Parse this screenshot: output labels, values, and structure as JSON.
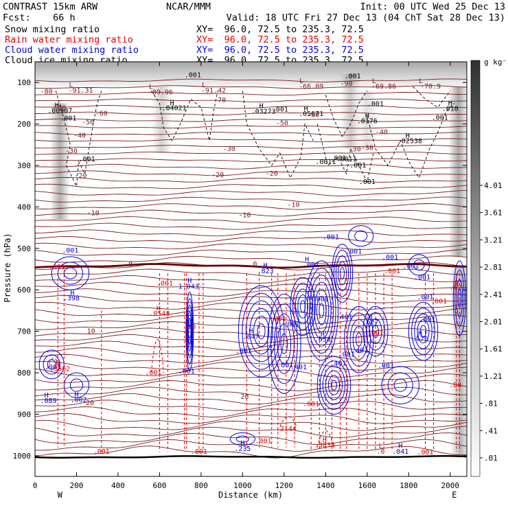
{
  "header": {
    "left_line1": "CONTRAST 15km ARW",
    "center_line1": "NCAR/MMM",
    "right_line1": "Init: 00 UTC Wed 25 Dec 13",
    "left_line2": "Fcst:    66 h",
    "right_line2": "Valid: 18 UTC Fri 27 Dec 13 (04 ChT Sat 28 Dec 13)"
  },
  "fields": [
    {
      "name": "Snow mixing ratio",
      "xy": "XY=  96.0, 72.5 to 235.3, 72.5",
      "color": "#000000"
    },
    {
      "name": "Rain water mixing ratio",
      "xy": "XY=  96.0, 72.5 to 235.3, 72.5",
      "color": "#e00000"
    },
    {
      "name": "Cloud water mixing ratio",
      "xy": "XY=  96.0, 72.5 to 235.3, 72.5",
      "color": "#0000e0"
    },
    {
      "name": "Cloud ice mixing ratio",
      "xy": "XY=  96.0, 72.5 to 235.3, 72.5",
      "color": "#000000"
    }
  ],
  "colors": {
    "temperature": "#7a1a1a",
    "freezing": "#6a0000",
    "rain": "#e00000",
    "cloud_water": "#0000e0",
    "ice": "#000000"
  },
  "chart_data": {
    "type": "cross-section",
    "xlabel": "Distance (km)",
    "ylabel": "Pressure (hPa)",
    "xlim": [
      0,
      2080
    ],
    "ylim": [
      1050,
      50
    ],
    "x_ticks": [
      0,
      200,
      400,
      600,
      800,
      1000,
      1200,
      1400,
      1600,
      1800,
      2000
    ],
    "y_ticks": [
      100,
      200,
      300,
      400,
      500,
      600,
      700,
      800,
      900,
      1000
    ],
    "endpoint_labels": [
      "W",
      "E"
    ],
    "colorbar": {
      "unit": "g kg⁻¹",
      "ticks": [
        ".01",
        ".41",
        ".81",
        "1.21",
        "1.61",
        "2.01",
        "2.41",
        "2.81",
        "3.21",
        "3.61",
        "4.01"
      ],
      "range": [
        0.01,
        4.41
      ]
    },
    "temperature_labels": [
      {
        "text": "-80",
        "x": 55,
        "p": 122
      },
      {
        "text": "-70",
        "x": 120,
        "p": 162
      },
      {
        "text": "-60",
        "x": 320,
        "p": 175
      },
      {
        "text": "-50",
        "x": 255,
        "p": 196
      },
      {
        "text": "-40",
        "x": 215,
        "p": 228
      },
      {
        "text": "-30",
        "x": 175,
        "p": 265
      },
      {
        "text": "-20",
        "x": 220,
        "p": 325
      },
      {
        "text": "-10",
        "x": 280,
        "p": 415
      },
      {
        "text": "0",
        "x": 460,
        "p": 538
      },
      {
        "text": "10",
        "x": 270,
        "p": 700
      },
      {
        "text": "20",
        "x": 265,
        "p": 873
      },
      {
        "text": "-70",
        "x": 890,
        "p": 143
      },
      {
        "text": "-60",
        "x": 1340,
        "p": 178
      },
      {
        "text": "-50",
        "x": 1190,
        "p": 198
      },
      {
        "text": "-40",
        "x": 1670,
        "p": 220
      },
      {
        "text": "-30",
        "x": 1600,
        "p": 258
      },
      {
        "text": "-20",
        "x": 1140,
        "p": 320
      },
      {
        "text": "-10",
        "x": 1245,
        "p": 395
      },
      {
        "text": "0",
        "x": 1060,
        "p": 538
      },
      {
        "text": "20",
        "x": 1010,
        "p": 858
      },
      {
        "text": "-30",
        "x": 935,
        "p": 260
      },
      {
        "text": "-20",
        "x": 880,
        "p": 323
      },
      {
        "text": "-10",
        "x": 1010,
        "p": 420
      },
      {
        "text": "-30",
        "x": 1540,
        "p": 261
      },
      {
        "text": "-90",
        "x": 1500,
        "p": 103
      },
      {
        "text": "10",
        "x": 755,
        "p": 690
      }
    ],
    "temperature_extrema": [
      {
        "type": "L",
        "value": "-91.31",
        "x": 220,
        "p": 88
      },
      {
        "type": "L",
        "value": "-89.96",
        "x": 605,
        "p": 92
      },
      {
        "type": "L",
        "value": "-91.42",
        "x": 860,
        "p": 88
      },
      {
        "type": "L",
        "value": "-66.09",
        "x": 1330,
        "p": 78
      },
      {
        "type": "L",
        "value": "-69.86",
        "x": 1680,
        "p": 78
      },
      {
        "type": "L",
        "value": "-70.9",
        "x": 1905,
        "p": 78
      }
    ],
    "snow_labels": [
      {
        "text": ".001",
        "x": 1530,
        "p": 85
      },
      {
        "text": ".001",
        "x": 760,
        "p": 82
      },
      {
        "text": ".001",
        "x": 160,
        "p": 187
      },
      {
        "text": ".001",
        "x": 250,
        "p": 285
      },
      {
        "text": ".001",
        "x": 1180,
        "p": 165
      },
      {
        "text": ".001",
        "x": 1640,
        "p": 152
      },
      {
        "text": ".001",
        "x": 1555,
        "p": 300
      },
      {
        "text": ".001",
        "x": 1600,
        "p": 340
      },
      {
        "text": ".001",
        "x": 1950,
        "p": 185
      }
    ],
    "ice_maxima": [
      {
        "text": ".00907",
        "x": 120,
        "p": 168
      },
      {
        "text": ".04021",
        "x": 670,
        "p": 162
      },
      {
        "text": ".03273",
        "x": 1100,
        "p": 170
      },
      {
        "text": ".05671",
        "x": 1330,
        "p": 176
      },
      {
        "text": ".0176",
        "x": 1600,
        "p": 193
      },
      {
        "text": ".02538",
        "x": 1805,
        "p": 241
      },
      {
        "text": ".010",
        "x": 2000,
        "p": 163
      },
      {
        "text": ".0011",
        "x": 1400,
        "p": 292
      },
      {
        "text": ".0011",
        "x": 1500,
        "p": 285
      },
      {
        "text": ".001",
        "x": 1460,
        "p": 283
      }
    ],
    "cloud_water_labels": [
      {
        "text": ".001",
        "x": 170,
        "p": 505
      },
      {
        "text": ".398",
        "x": 175,
        "p": 620
      },
      {
        "text": ".001",
        "x": 85,
        "p": 787
      },
      {
        "text": ".089",
        "x": 65,
        "p": 868
      },
      {
        "text": ".002",
        "x": 210,
        "p": 865
      },
      {
        "text": "1.043",
        "x": 740,
        "p": 592
      },
      {
        "text": ".001",
        "x": 730,
        "p": 797
      },
      {
        "text": ".823",
        "x": 1110,
        "p": 555
      },
      {
        "text": ".847",
        "x": 1040,
        "p": 713
      },
      {
        "text": ".001",
        "x": 1005,
        "p": 748
      },
      {
        "text": ".001",
        "x": 1235,
        "p": 683
      },
      {
        "text": ".401",
        "x": 1270,
        "p": 787
      },
      {
        "text": ".001",
        "x": 1205,
        "p": 782
      },
      {
        "text": ".638",
        "x": 1385,
        "p": 720
      },
      {
        "text": ".401",
        "x": 1460,
        "p": 778
      },
      {
        "text": ".001",
        "x": 1500,
        "p": 756
      },
      {
        "text": ".401",
        "x": 1565,
        "p": 746
      },
      {
        "text": ".401",
        "x": 1490,
        "p": 666
      },
      {
        "text": ".001",
        "x": 1375,
        "p": 623
      },
      {
        "text": ".627",
        "x": 1615,
        "p": 678
      },
      {
        "text": ".001",
        "x": 1690,
        "p": 783
      },
      {
        "text": ".576",
        "x": 1855,
        "p": 718
      },
      {
        "text": ".001",
        "x": 1890,
        "p": 672
      },
      {
        "text": ".001",
        "x": 1425,
        "p": 473
      },
      {
        "text": ".001",
        "x": 1535,
        "p": 508
      },
      {
        "text": ".001",
        "x": 1810,
        "p": 543
      },
      {
        "text": ".001",
        "x": 1865,
        "p": 570
      },
      {
        "text": ".235",
        "x": 1000,
        "p": 984
      },
      {
        "text": ".041",
        "x": 1760,
        "p": 990
      },
      {
        "text": ".001",
        "x": 1880,
        "p": 618
      },
      {
        "text": ".001",
        "x": 1330,
        "p": 540
      },
      {
        "text": ".001",
        "x": 1710,
        "p": 522
      }
    ],
    "rain_labels": [
      {
        "text": ".3662",
        "x": 120,
        "p": 791
      },
      {
        "text": ".0548",
        "x": 600,
        "p": 658
      },
      {
        "text": ".001",
        "x": 570,
        "p": 800
      },
      {
        "text": ".001",
        "x": 105,
        "p": 545
      },
      {
        "text": ".001",
        "x": 320,
        "p": 990
      },
      {
        "text": ".001",
        "x": 625,
        "p": 585
      },
      {
        "text": ".001",
        "x": 790,
        "p": 990
      },
      {
        "text": ".2144",
        "x": 1210,
        "p": 935
      },
      {
        "text": ".001",
        "x": 1100,
        "p": 965
      },
      {
        "text": ".3838",
        "x": 1395,
        "p": 975
      },
      {
        "text": ".001",
        "x": 1330,
        "p": 875
      },
      {
        "text": ".001",
        "x": 1640,
        "p": 705
      },
      {
        "text": ".0",
        "x": 1665,
        "p": 990
      },
      {
        "text": ".001",
        "x": 1880,
        "p": 992
      },
      {
        "text": ".001",
        "x": 1945,
        "p": 628
      },
      {
        "text": ".62",
        "x": 2025,
        "p": 595
      },
      {
        "text": ".88",
        "x": 2025,
        "p": 830
      },
      {
        "text": ".001",
        "x": 1170,
        "p": 670
      },
      {
        "text": ".001",
        "x": 1720,
        "p": 555
      }
    ],
    "extrema_markers": [
      {
        "type": "H",
        "color": "ice",
        "x": 105,
        "p": 155
      },
      {
        "type": "H",
        "color": "ice",
        "x": 660,
        "p": 150
      },
      {
        "type": "H",
        "color": "ice",
        "x": 1090,
        "p": 157
      },
      {
        "type": "H",
        "color": "ice",
        "x": 1305,
        "p": 163
      },
      {
        "type": "H",
        "color": "ice",
        "x": 1600,
        "p": 180
      },
      {
        "type": "H",
        "color": "ice",
        "x": 1795,
        "p": 229
      },
      {
        "type": "H",
        "color": "ice",
        "x": 2000,
        "p": 150
      },
      {
        "type": "H",
        "color": "cloud",
        "x": 180,
        "p": 608
      },
      {
        "type": "H",
        "color": "cloud",
        "x": 55,
        "p": 855
      },
      {
        "type": "H",
        "color": "cloud",
        "x": 200,
        "p": 853
      },
      {
        "type": "H",
        "color": "cloud",
        "x": 745,
        "p": 578
      },
      {
        "type": "H",
        "color": "cloud",
        "x": 1110,
        "p": 542
      },
      {
        "type": "H",
        "color": "cloud",
        "x": 1040,
        "p": 700
      },
      {
        "type": "H",
        "color": "cloud",
        "x": 1385,
        "p": 707
      },
      {
        "type": "H",
        "color": "cloud",
        "x": 1615,
        "p": 665
      },
      {
        "type": "H",
        "color": "cloud",
        "x": 1855,
        "p": 705
      },
      {
        "type": "H",
        "color": "cloud",
        "x": 1000,
        "p": 970
      },
      {
        "type": "H",
        "color": "cloud",
        "x": 1760,
        "p": 976
      },
      {
        "type": "H",
        "color": "cloud",
        "x": 1310,
        "p": 527
      },
      {
        "type": "H",
        "color": "rain",
        "x": 110,
        "p": 777
      },
      {
        "type": "H",
        "color": "rain",
        "x": 595,
        "p": 645
      },
      {
        "type": "H",
        "color": "rain",
        "x": 1395,
        "p": 962
      },
      {
        "type": "H",
        "color": "rain",
        "x": 2025,
        "p": 582
      },
      {
        "type": "L",
        "color": "rain",
        "x": 1665,
        "p": 976
      }
    ]
  }
}
